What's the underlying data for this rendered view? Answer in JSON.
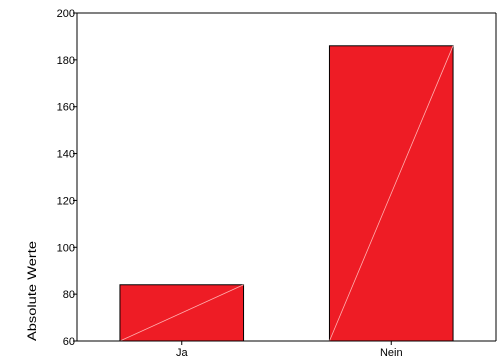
{
  "chart_data": {
    "type": "bar",
    "categories": [
      "Ja",
      "Nein"
    ],
    "values": [
      84,
      186
    ],
    "ylabel": "Absolute Werte",
    "xlabel": "",
    "ylim": [
      60,
      200
    ],
    "yticks": [
      60,
      80,
      100,
      120,
      140,
      160,
      180,
      200
    ],
    "grid": false,
    "legend": "none",
    "bar_color": "#ee1c25",
    "bar_edge_color": "#000000",
    "diagonal_color": "#ffb0b0"
  }
}
